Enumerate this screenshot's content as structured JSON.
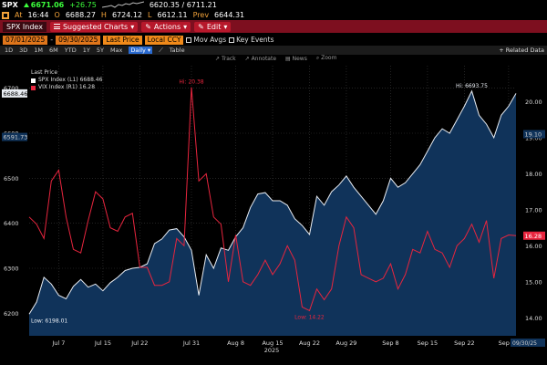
{
  "header": {
    "ticker": "SPX",
    "last": "6671.06",
    "change": "+26.75",
    "range": "6620.35 / 6711.21",
    "at_label": "At",
    "time": "16:44",
    "o_label": "O",
    "open": "6688.27",
    "h_label": "H",
    "high": "6724.12",
    "l_label": "L",
    "low": "6612.11",
    "prev_label": "Prev",
    "prev": "6644.31"
  },
  "toolbar": {
    "title": "SPX Index",
    "suggested": "Suggested Charts",
    "actions": "Actions",
    "edit": "Edit"
  },
  "controls": {
    "date_from": "07/01/2025",
    "date_to": "09/30/2025",
    "field": "Last Price",
    "currency": "Local CCY",
    "mov_avgs": "Mov Avgs",
    "key_events": "Key Events"
  },
  "periods": [
    "1D",
    "3D",
    "1M",
    "6M",
    "YTD",
    "1Y",
    "5Y",
    "Max"
  ],
  "interval": "Daily",
  "table_label": "Table",
  "related": "+ Related Data",
  "tools": [
    "Track",
    "Annotate",
    "News",
    "Zoom"
  ],
  "legend": {
    "header": "Last Price",
    "spx": "SPX Index (L1)  6688.46",
    "vix": "VIX Index (R1)    16.28"
  },
  "colors": {
    "spx_line": "#e8ecf2",
    "spx_fill": "#10335a",
    "vix_line": "#e8253e",
    "accent": "#f08a1a",
    "bar": "#7d0f1f"
  },
  "chart_data": {
    "type": "line",
    "x_labels": [
      "Jul 7",
      "Jul 15",
      "Jul 22",
      "Jul 31",
      "Aug 8",
      "Aug 15",
      "Aug 22",
      "Aug 29",
      "Sep 8",
      "Sep 15",
      "Sep 22",
      "Sep 30"
    ],
    "x_label_index": [
      4,
      10,
      15,
      22,
      28,
      33,
      38,
      43,
      49,
      54,
      59,
      65
    ],
    "year_label": "2025",
    "y_left": {
      "min": 6150,
      "max": 6750,
      "ticks": [
        6200,
        6300,
        6400,
        6500,
        6600,
        6700
      ]
    },
    "y_right": {
      "min": 13.5,
      "max": 21,
      "ticks": [
        14,
        15,
        16,
        17,
        18,
        19,
        20
      ]
    },
    "series": [
      {
        "name": "SPX Index (L1)",
        "axis": "left",
        "values": [
          6198,
          6225,
          6280,
          6265,
          6240,
          6232,
          6260,
          6275,
          6258,
          6265,
          6250,
          6268,
          6280,
          6295,
          6300,
          6302,
          6310,
          6355,
          6365,
          6385,
          6388,
          6370,
          6340,
          6240,
          6330,
          6300,
          6345,
          6340,
          6370,
          6390,
          6435,
          6465,
          6468,
          6450,
          6450,
          6440,
          6410,
          6395,
          6375,
          6460,
          6440,
          6470,
          6485,
          6505,
          6480,
          6460,
          6440,
          6420,
          6450,
          6500,
          6480,
          6490,
          6510,
          6530,
          6560,
          6590,
          6610,
          6600,
          6630,
          6660,
          6693.75,
          6640,
          6620,
          6590,
          6640,
          6660,
          6688.46
        ]
      },
      {
        "name": "VIX Index (R1)",
        "axis": "right",
        "values": [
          16.8,
          16.6,
          16.2,
          17.8,
          18.1,
          16.8,
          15.9,
          15.8,
          16.7,
          17.5,
          17.3,
          16.5,
          16.4,
          16.8,
          16.9,
          15.4,
          15.4,
          14.9,
          14.9,
          15.0,
          16.2,
          16.0,
          20.4,
          17.8,
          18.0,
          16.8,
          16.6,
          15.0,
          16.3,
          15.0,
          14.9,
          15.2,
          15.6,
          15.2,
          15.5,
          16.0,
          15.6,
          14.3,
          14.2,
          14.8,
          14.5,
          14.8,
          16.0,
          16.8,
          16.5,
          15.2,
          15.1,
          15.0,
          15.1,
          15.5,
          14.8,
          15.2,
          15.9,
          15.8,
          16.4,
          15.9,
          15.8,
          15.4,
          16.0,
          16.2,
          16.6,
          16.1,
          16.7,
          15.1,
          16.2,
          16.3,
          16.28
        ]
      }
    ],
    "annotations": [
      {
        "text": "Hi: 20.38",
        "series": "VIX Index (R1)",
        "index": 22
      },
      {
        "text": "Low: 14.22",
        "series": "VIX Index (R1)",
        "index": 38
      },
      {
        "text": "Hi: 6693.75",
        "series": "SPX Index (L1)",
        "index": 60
      },
      {
        "text": "Low: 6198.01",
        "series": "SPX Index (L1)",
        "index": 0
      }
    ],
    "last_tags": {
      "left": "6688.46",
      "left_prev": "6591.73",
      "right": "16.28",
      "right_prev": "19.10",
      "date": "09/30/25"
    }
  }
}
